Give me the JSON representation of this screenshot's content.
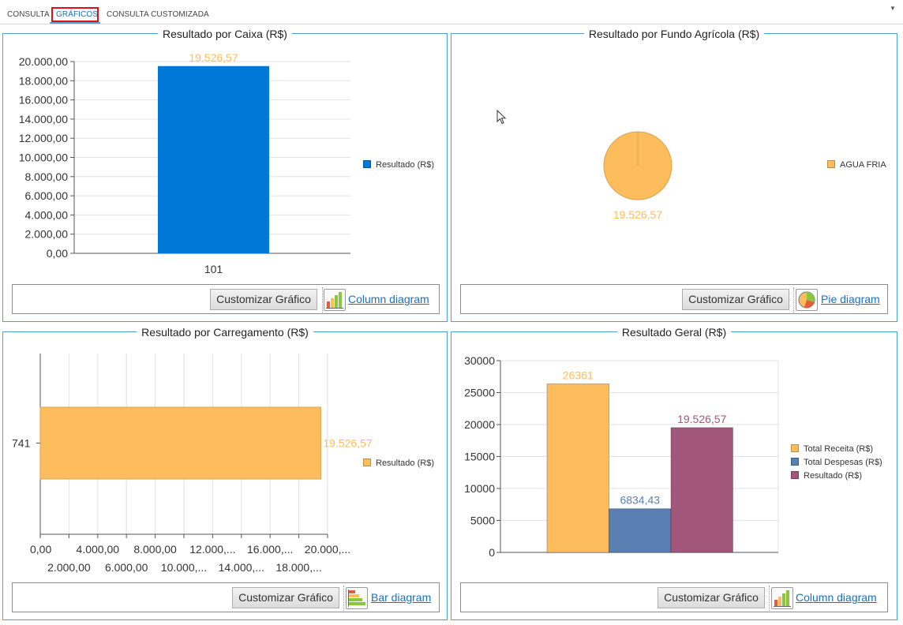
{
  "tabs": [
    {
      "label": "CONSULTA"
    },
    {
      "label": "GRÁFICOS"
    },
    {
      "label": "CONSULTA CUSTOMIZADA"
    }
  ],
  "colors": {
    "blue_bar": "#0078d7",
    "orange": "#fdbd5c",
    "steel_blue": "#5a7fb3",
    "plum": "#a2577a",
    "panel_border": "#4aa0d8",
    "link": "#1a6fc1"
  },
  "panels": {
    "caixa": {
      "title": "Resultado por Caixa (R$)",
      "customize_label": "Customizar Gráfico",
      "diagram_link": "Column diagram",
      "icon": "column-chart-icon",
      "legend": [
        {
          "label": "Resultado (R$)",
          "color": "#0078d7"
        }
      ]
    },
    "fundo": {
      "title": "Resultado por Fundo Agrícola (R$)",
      "customize_label": "Customizar Gráfico",
      "diagram_link": "Pie diagram",
      "icon": "pie-chart-icon",
      "legend": [
        {
          "label": "AGUA FRIA",
          "color": "#fdbd5c"
        }
      ]
    },
    "carregamento": {
      "title": "Resultado por Carregamento (R$)",
      "customize_label": "Customizar Gráfico",
      "diagram_link": "Bar diagram",
      "icon": "bar-chart-icon",
      "legend": [
        {
          "label": "Resultado (R$)",
          "color": "#fdbd5c"
        }
      ]
    },
    "geral": {
      "title": "Resultado Geral (R$)",
      "customize_label": "Customizar Gráfico",
      "diagram_link": "Column diagram",
      "icon": "column-chart-icon",
      "legend": [
        {
          "label": "Total Receita (R$)",
          "color": "#fdbd5c"
        },
        {
          "label": "Total Despesas (R$)",
          "color": "#5a7fb3"
        },
        {
          "label": "Resultado (R$)",
          "color": "#a2577a"
        }
      ]
    }
  },
  "chart_data": [
    {
      "type": "bar",
      "id": "caixa",
      "categories": [
        "101"
      ],
      "series": [
        {
          "name": "Resultado (R$)",
          "values": [
            19526.57
          ],
          "color": "#0078d7"
        }
      ],
      "data_labels": [
        "19.526,57"
      ],
      "ylim": [
        0,
        20000
      ],
      "yticks": [
        0,
        2000,
        4000,
        6000,
        8000,
        10000,
        12000,
        14000,
        16000,
        18000,
        20000
      ],
      "ytick_labels": [
        "0,00",
        "2.000,00",
        "4.000,00",
        "6.000,00",
        "8.000,00",
        "10.000,00",
        "12.000,00",
        "14.000,00",
        "16.000,00",
        "18.000,00",
        "20.000,00"
      ],
      "grid": true,
      "legend": "right"
    },
    {
      "type": "pie",
      "id": "fundo",
      "categories": [
        "AGUA FRIA"
      ],
      "values": [
        19526.57
      ],
      "data_labels": [
        "19.526,57"
      ],
      "colors": [
        "#fdbd5c"
      ],
      "legend": "right"
    },
    {
      "type": "bar",
      "id": "carregamento",
      "orientation": "horizontal",
      "categories": [
        "741"
      ],
      "series": [
        {
          "name": "Resultado (R$)",
          "values": [
            19526.57
          ],
          "color": "#fdbd5c"
        }
      ],
      "data_labels": [
        "19.526,57"
      ],
      "xlim": [
        0,
        20000
      ],
      "xticks": [
        0,
        2000,
        4000,
        6000,
        8000,
        10000,
        12000,
        14000,
        16000,
        18000,
        20000
      ],
      "xtick_labels": [
        "0,00",
        "2.000,00",
        "4.000,00",
        "6.000,00",
        "8.000,00",
        "10.000,...",
        "12.000,...",
        "14.000,...",
        "16.000,...",
        "18.000,...",
        "20.000,..."
      ],
      "grid": true,
      "legend": "right"
    },
    {
      "type": "bar",
      "id": "geral",
      "categories": [
        ""
      ],
      "series": [
        {
          "name": "Total Receita (R$)",
          "values": [
            26361
          ],
          "color": "#fdbd5c"
        },
        {
          "name": "Total Despesas (R$)",
          "values": [
            6834.43
          ],
          "color": "#5a7fb3"
        },
        {
          "name": "Resultado (R$)",
          "values": [
            19526.57
          ],
          "color": "#a2577a"
        }
      ],
      "data_labels": [
        "26361",
        "6834,43",
        "19.526,57"
      ],
      "ylim": [
        0,
        30000
      ],
      "yticks": [
        0,
        5000,
        10000,
        15000,
        20000,
        25000,
        30000
      ],
      "ytick_labels": [
        "0",
        "5000",
        "10000",
        "15000",
        "20000",
        "25000",
        "30000"
      ],
      "grid": true,
      "legend": "right"
    }
  ]
}
